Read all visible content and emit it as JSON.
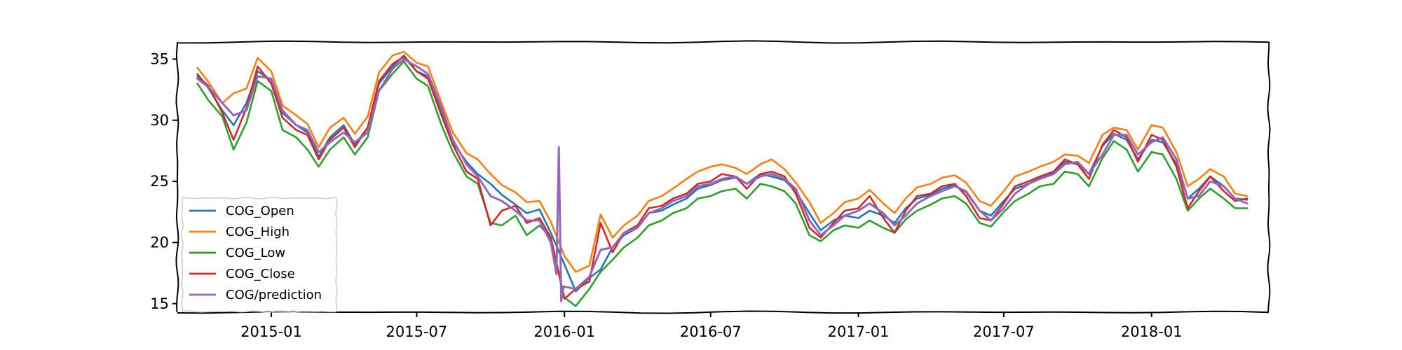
{
  "chart_data": {
    "type": "line",
    "title": "",
    "xlabel": "",
    "ylabel": "",
    "x_range": [
      "2014-09-06",
      "2018-05-27"
    ],
    "x_ticks": [
      "2015-01",
      "2015-07",
      "2016-01",
      "2016-07",
      "2017-01",
      "2017-07",
      "2018-01"
    ],
    "ylim": [
      14.3,
      36.4
    ],
    "y_ticks": [
      15,
      20,
      25,
      30,
      35
    ],
    "grid": false,
    "legend_position": "lower-left",
    "colors": {
      "COG_Open": "#1f77b4",
      "COG_High": "#ff7f0e",
      "COG_Low": "#2ca02c",
      "COG_Close": "#d62728",
      "COG/prediction": "#9467bd"
    },
    "series": [
      {
        "name": "COG_Open",
        "x": [
          "2014-10-01",
          "2014-10-15",
          "2014-11-01",
          "2014-11-15",
          "2014-12-01",
          "2014-12-15",
          "2015-01-01",
          "2015-01-15",
          "2015-02-01",
          "2015-02-15",
          "2015-03-01",
          "2015-03-15",
          "2015-04-01",
          "2015-04-15",
          "2015-05-01",
          "2015-05-15",
          "2015-06-01",
          "2015-06-15",
          "2015-07-01",
          "2015-07-15",
          "2015-08-01",
          "2015-08-15",
          "2015-09-01",
          "2015-09-15",
          "2015-10-01",
          "2015-10-15",
          "2015-11-01",
          "2015-11-15",
          "2015-12-01",
          "2015-12-15",
          "2016-01-01",
          "2016-01-15",
          "2016-02-01",
          "2016-02-15",
          "2016-03-01",
          "2016-03-15",
          "2016-04-01",
          "2016-04-15",
          "2016-05-01",
          "2016-05-15",
          "2016-06-01",
          "2016-06-15",
          "2016-07-01",
          "2016-07-15",
          "2016-08-01",
          "2016-08-15",
          "2016-09-01",
          "2016-09-15",
          "2016-10-01",
          "2016-10-15",
          "2016-11-01",
          "2016-11-15",
          "2016-12-01",
          "2016-12-15",
          "2017-01-01",
          "2017-01-15",
          "2017-02-01",
          "2017-02-15",
          "2017-03-01",
          "2017-03-15",
          "2017-04-01",
          "2017-04-15",
          "2017-05-01",
          "2017-05-15",
          "2017-06-01",
          "2017-06-15",
          "2017-07-01",
          "2017-07-15",
          "2017-08-01",
          "2017-08-15",
          "2017-09-01",
          "2017-09-15",
          "2017-10-01",
          "2017-10-15",
          "2017-11-01",
          "2017-11-15",
          "2017-12-01",
          "2017-12-15",
          "2018-01-01",
          "2018-01-15",
          "2018-02-01",
          "2018-02-15",
          "2018-03-01",
          "2018-03-15",
          "2018-04-01",
          "2018-04-15",
          "2018-04-30"
        ],
        "values": [
          33.8,
          32.6,
          30.8,
          29.6,
          31.4,
          34.0,
          33.3,
          30.6,
          29.6,
          29.0,
          27.0,
          28.6,
          29.6,
          28.0,
          29.4,
          33.0,
          34.4,
          35.3,
          34.0,
          33.6,
          30.6,
          28.2,
          26.6,
          25.6,
          24.8,
          23.9,
          23.1,
          22.4,
          22.7,
          20.8,
          18.2,
          16.0,
          17.1,
          17.8,
          19.6,
          20.6,
          21.2,
          22.4,
          22.6,
          23.1,
          23.6,
          24.4,
          24.7,
          25.1,
          25.3,
          24.8,
          25.6,
          25.4,
          25.1,
          24.2,
          22.4,
          21.0,
          21.8,
          22.2,
          22.0,
          22.6,
          22.2,
          21.6,
          22.8,
          23.6,
          23.9,
          24.4,
          24.7,
          24.1,
          22.6,
          22.2,
          23.4,
          24.4,
          24.8,
          25.3,
          25.7,
          26.6,
          26.4,
          25.6,
          27.9,
          28.9,
          28.4,
          26.8,
          28.4,
          28.2,
          26.4,
          23.6,
          24.4,
          25.4,
          24.6,
          23.6,
          23.5
        ]
      },
      {
        "name": "COG_High",
        "x": [
          "2014-10-01",
          "2014-10-15",
          "2014-11-01",
          "2014-11-15",
          "2014-12-01",
          "2014-12-15",
          "2015-01-01",
          "2015-01-15",
          "2015-02-01",
          "2015-02-15",
          "2015-03-01",
          "2015-03-15",
          "2015-04-01",
          "2015-04-15",
          "2015-05-01",
          "2015-05-15",
          "2015-06-01",
          "2015-06-15",
          "2015-07-01",
          "2015-07-15",
          "2015-08-01",
          "2015-08-15",
          "2015-09-01",
          "2015-09-15",
          "2015-10-01",
          "2015-10-15",
          "2015-11-01",
          "2015-11-15",
          "2015-12-01",
          "2015-12-15",
          "2016-01-01",
          "2016-01-15",
          "2016-02-01",
          "2016-02-15",
          "2016-03-01",
          "2016-03-15",
          "2016-04-01",
          "2016-04-15",
          "2016-05-01",
          "2016-05-15",
          "2016-06-01",
          "2016-06-15",
          "2016-07-01",
          "2016-07-15",
          "2016-08-01",
          "2016-08-15",
          "2016-09-01",
          "2016-09-15",
          "2016-10-01",
          "2016-10-15",
          "2016-11-01",
          "2016-11-15",
          "2016-12-01",
          "2016-12-15",
          "2017-01-01",
          "2017-01-15",
          "2017-02-01",
          "2017-02-15",
          "2017-03-01",
          "2017-03-15",
          "2017-04-01",
          "2017-04-15",
          "2017-05-01",
          "2017-05-15",
          "2017-06-01",
          "2017-06-15",
          "2017-07-01",
          "2017-07-15",
          "2017-08-01",
          "2017-08-15",
          "2017-09-01",
          "2017-09-15",
          "2017-10-01",
          "2017-10-15",
          "2017-11-01",
          "2017-11-15",
          "2017-12-01",
          "2017-12-15",
          "2018-01-01",
          "2018-01-15",
          "2018-02-01",
          "2018-02-15",
          "2018-03-01",
          "2018-03-15",
          "2018-04-01",
          "2018-04-15",
          "2018-04-30"
        ],
        "values": [
          34.3,
          33.1,
          31.4,
          32.2,
          32.6,
          35.1,
          34.0,
          31.2,
          30.4,
          29.7,
          27.8,
          29.4,
          30.2,
          28.9,
          30.3,
          33.9,
          35.3,
          35.6,
          34.7,
          34.4,
          31.4,
          29.0,
          27.3,
          26.8,
          25.6,
          24.7,
          24.1,
          23.3,
          23.4,
          21.7,
          18.9,
          17.6,
          18.1,
          22.3,
          20.4,
          21.4,
          22.2,
          23.4,
          23.8,
          24.4,
          25.2,
          25.8,
          26.2,
          26.4,
          26.1,
          25.6,
          26.4,
          26.8,
          26.0,
          24.9,
          23.3,
          21.6,
          22.4,
          23.3,
          23.6,
          24.3,
          23.2,
          22.4,
          23.6,
          24.5,
          24.8,
          25.3,
          25.5,
          24.9,
          23.4,
          23.0,
          24.2,
          25.4,
          25.8,
          26.2,
          26.6,
          27.2,
          27.1,
          26.5,
          28.8,
          29.4,
          29.2,
          27.6,
          29.6,
          29.4,
          27.4,
          24.6,
          25.2,
          26.0,
          25.4,
          24.0,
          23.8
        ]
      },
      {
        "name": "COG_Low",
        "x": [
          "2014-10-01",
          "2014-10-15",
          "2014-11-01",
          "2014-11-15",
          "2014-12-01",
          "2014-12-15",
          "2015-01-01",
          "2015-01-15",
          "2015-02-01",
          "2015-02-15",
          "2015-03-01",
          "2015-03-15",
          "2015-04-01",
          "2015-04-15",
          "2015-05-01",
          "2015-05-15",
          "2015-06-01",
          "2015-06-15",
          "2015-07-01",
          "2015-07-15",
          "2015-08-01",
          "2015-08-15",
          "2015-09-01",
          "2015-09-15",
          "2015-10-01",
          "2015-10-15",
          "2015-11-01",
          "2015-11-15",
          "2015-12-01",
          "2015-12-15",
          "2016-01-01",
          "2016-01-15",
          "2016-02-01",
          "2016-02-15",
          "2016-03-01",
          "2016-03-15",
          "2016-04-01",
          "2016-04-15",
          "2016-05-01",
          "2016-05-15",
          "2016-06-01",
          "2016-06-15",
          "2016-07-01",
          "2016-07-15",
          "2016-08-01",
          "2016-08-15",
          "2016-09-01",
          "2016-09-15",
          "2016-10-01",
          "2016-10-15",
          "2016-11-01",
          "2016-11-15",
          "2016-12-01",
          "2016-12-15",
          "2017-01-01",
          "2017-01-15",
          "2017-02-01",
          "2017-02-15",
          "2017-03-01",
          "2017-03-15",
          "2017-04-01",
          "2017-04-15",
          "2017-05-01",
          "2017-05-15",
          "2017-06-01",
          "2017-06-15",
          "2017-07-01",
          "2017-07-15",
          "2017-08-01",
          "2017-08-15",
          "2017-09-01",
          "2017-09-15",
          "2017-10-01",
          "2017-10-15",
          "2017-11-01",
          "2017-11-15",
          "2017-12-01",
          "2017-12-15",
          "2018-01-01",
          "2018-01-15",
          "2018-02-01",
          "2018-02-15",
          "2018-03-01",
          "2018-03-15",
          "2018-04-01",
          "2018-04-15",
          "2018-04-30"
        ],
        "values": [
          33.0,
          31.6,
          30.3,
          27.6,
          29.8,
          33.2,
          32.4,
          29.2,
          28.6,
          27.6,
          26.2,
          27.6,
          28.6,
          27.2,
          28.6,
          32.4,
          33.8,
          34.8,
          33.4,
          32.8,
          29.6,
          27.4,
          25.4,
          24.8,
          21.6,
          21.4,
          22.2,
          20.6,
          21.4,
          20.4,
          15.5,
          14.8,
          16.2,
          17.6,
          18.6,
          19.6,
          20.4,
          21.4,
          21.8,
          22.4,
          22.8,
          23.6,
          23.8,
          24.2,
          24.4,
          23.6,
          24.8,
          24.6,
          24.2,
          23.2,
          20.6,
          20.1,
          21.0,
          21.4,
          21.2,
          21.8,
          21.2,
          20.8,
          21.9,
          22.6,
          23.1,
          23.6,
          23.8,
          23.2,
          21.6,
          21.3,
          22.5,
          23.4,
          24.0,
          24.6,
          24.8,
          25.8,
          25.6,
          24.6,
          26.9,
          28.3,
          27.6,
          25.8,
          27.4,
          27.2,
          25.2,
          22.6,
          23.6,
          24.4,
          23.6,
          22.8,
          22.8
        ]
      },
      {
        "name": "COG_Close",
        "x": [
          "2014-10-01",
          "2014-10-15",
          "2014-11-01",
          "2014-11-15",
          "2014-12-01",
          "2014-12-15",
          "2015-01-01",
          "2015-01-15",
          "2015-02-01",
          "2015-02-15",
          "2015-03-01",
          "2015-03-15",
          "2015-04-01",
          "2015-04-15",
          "2015-05-01",
          "2015-05-15",
          "2015-06-01",
          "2015-06-15",
          "2015-07-01",
          "2015-07-15",
          "2015-08-01",
          "2015-08-15",
          "2015-09-01",
          "2015-09-15",
          "2015-10-01",
          "2015-10-15",
          "2015-11-01",
          "2015-11-15",
          "2015-12-01",
          "2015-12-15",
          "2016-01-01",
          "2016-01-15",
          "2016-02-01",
          "2016-02-15",
          "2016-03-01",
          "2016-03-15",
          "2016-04-01",
          "2016-04-15",
          "2016-05-01",
          "2016-05-15",
          "2016-06-01",
          "2016-06-15",
          "2016-07-01",
          "2016-07-15",
          "2016-08-01",
          "2016-08-15",
          "2016-09-01",
          "2016-09-15",
          "2016-10-01",
          "2016-10-15",
          "2016-11-01",
          "2016-11-15",
          "2016-12-01",
          "2016-12-15",
          "2017-01-01",
          "2017-01-15",
          "2017-02-01",
          "2017-02-15",
          "2017-03-01",
          "2017-03-15",
          "2017-04-01",
          "2017-04-15",
          "2017-05-01",
          "2017-05-15",
          "2017-06-01",
          "2017-06-15",
          "2017-07-01",
          "2017-07-15",
          "2017-08-01",
          "2017-08-15",
          "2017-09-01",
          "2017-09-15",
          "2017-10-01",
          "2017-10-15",
          "2017-11-01",
          "2017-11-15",
          "2017-12-01",
          "2017-12-15",
          "2018-01-01",
          "2018-01-15",
          "2018-02-01",
          "2018-02-15",
          "2018-03-01",
          "2018-03-15",
          "2018-04-01",
          "2018-04-15",
          "2018-04-30"
        ],
        "values": [
          33.6,
          32.8,
          30.6,
          28.4,
          31.0,
          34.4,
          33.0,
          30.2,
          29.2,
          28.8,
          26.8,
          28.4,
          29.4,
          27.8,
          29.4,
          33.2,
          34.6,
          35.2,
          34.0,
          33.4,
          30.4,
          28.0,
          25.8,
          25.2,
          21.4,
          22.6,
          23.0,
          21.6,
          22.0,
          20.4,
          15.4,
          16.2,
          16.8,
          21.6,
          19.2,
          20.8,
          21.4,
          22.8,
          23.0,
          23.6,
          24.0,
          24.8,
          25.0,
          25.6,
          25.4,
          24.4,
          25.6,
          25.8,
          25.4,
          24.0,
          21.2,
          20.4,
          21.6,
          22.6,
          22.8,
          23.8,
          22.0,
          20.8,
          22.6,
          23.8,
          24.0,
          24.6,
          24.8,
          23.8,
          22.0,
          21.8,
          23.2,
          24.6,
          25.0,
          25.4,
          25.8,
          26.8,
          26.4,
          25.2,
          28.0,
          29.2,
          28.6,
          26.6,
          28.8,
          28.4,
          26.2,
          22.8,
          24.2,
          25.4,
          24.2,
          23.4,
          23.6
        ]
      },
      {
        "name": "COG/prediction",
        "x": [
          "2014-10-01",
          "2014-10-15",
          "2014-11-01",
          "2014-11-15",
          "2014-12-01",
          "2014-12-15",
          "2015-01-01",
          "2015-01-15",
          "2015-02-01",
          "2015-02-15",
          "2015-03-01",
          "2015-03-15",
          "2015-04-01",
          "2015-04-15",
          "2015-05-01",
          "2015-05-15",
          "2015-06-01",
          "2015-06-15",
          "2015-07-01",
          "2015-07-15",
          "2015-08-01",
          "2015-08-15",
          "2015-09-01",
          "2015-09-15",
          "2015-10-01",
          "2015-10-15",
          "2015-11-01",
          "2015-11-15",
          "2015-12-01",
          "2015-12-15",
          "2015-12-22",
          "2015-12-25",
          "2015-12-28",
          "2015-12-31",
          "2016-01-15",
          "2016-02-01",
          "2016-02-15",
          "2016-03-01",
          "2016-03-15",
          "2016-04-01",
          "2016-04-15",
          "2016-05-01",
          "2016-05-15",
          "2016-06-01",
          "2016-06-15",
          "2016-07-01",
          "2016-07-15",
          "2016-08-01",
          "2016-08-15",
          "2016-09-01",
          "2016-09-15",
          "2016-10-01",
          "2016-10-15",
          "2016-11-01",
          "2016-11-15",
          "2016-12-01",
          "2016-12-15",
          "2017-01-01",
          "2017-01-15",
          "2017-02-01",
          "2017-02-15",
          "2017-03-01",
          "2017-03-15",
          "2017-04-01",
          "2017-04-15",
          "2017-05-01",
          "2017-05-15",
          "2017-06-01",
          "2017-06-15",
          "2017-07-01",
          "2017-07-15",
          "2017-08-01",
          "2017-08-15",
          "2017-09-01",
          "2017-09-15",
          "2017-10-01",
          "2017-10-15",
          "2017-11-01",
          "2017-11-15",
          "2017-12-01",
          "2017-12-15",
          "2018-01-01",
          "2018-01-15",
          "2018-02-01",
          "2018-02-15",
          "2018-03-01",
          "2018-03-15",
          "2018-04-01",
          "2018-04-15",
          "2018-04-30"
        ],
        "values": [
          33.4,
          32.7,
          31.4,
          30.4,
          30.8,
          33.6,
          33.4,
          30.8,
          29.6,
          29.2,
          27.4,
          28.2,
          29.0,
          28.2,
          29.0,
          32.4,
          34.2,
          35.0,
          34.4,
          33.8,
          31.0,
          28.4,
          26.4,
          25.4,
          23.8,
          23.4,
          22.6,
          21.8,
          21.8,
          20.0,
          17.4,
          27.8,
          15.2,
          16.4,
          16.2,
          17.2,
          19.4,
          19.6,
          20.8,
          21.2,
          22.4,
          22.8,
          23.4,
          23.8,
          24.6,
          24.8,
          25.2,
          25.4,
          24.8,
          25.4,
          25.6,
          25.2,
          24.4,
          21.8,
          20.6,
          21.4,
          22.2,
          22.6,
          23.2,
          22.4,
          21.4,
          22.2,
          23.2,
          23.8,
          24.2,
          24.6,
          24.2,
          22.6,
          21.8,
          22.8,
          24.0,
          24.8,
          25.2,
          25.6,
          26.4,
          26.6,
          25.6,
          27.2,
          28.8,
          28.8,
          27.2,
          28.2,
          28.6,
          26.8,
          23.6,
          23.8,
          25.0,
          24.6,
          23.6,
          23.2
        ]
      }
    ]
  }
}
